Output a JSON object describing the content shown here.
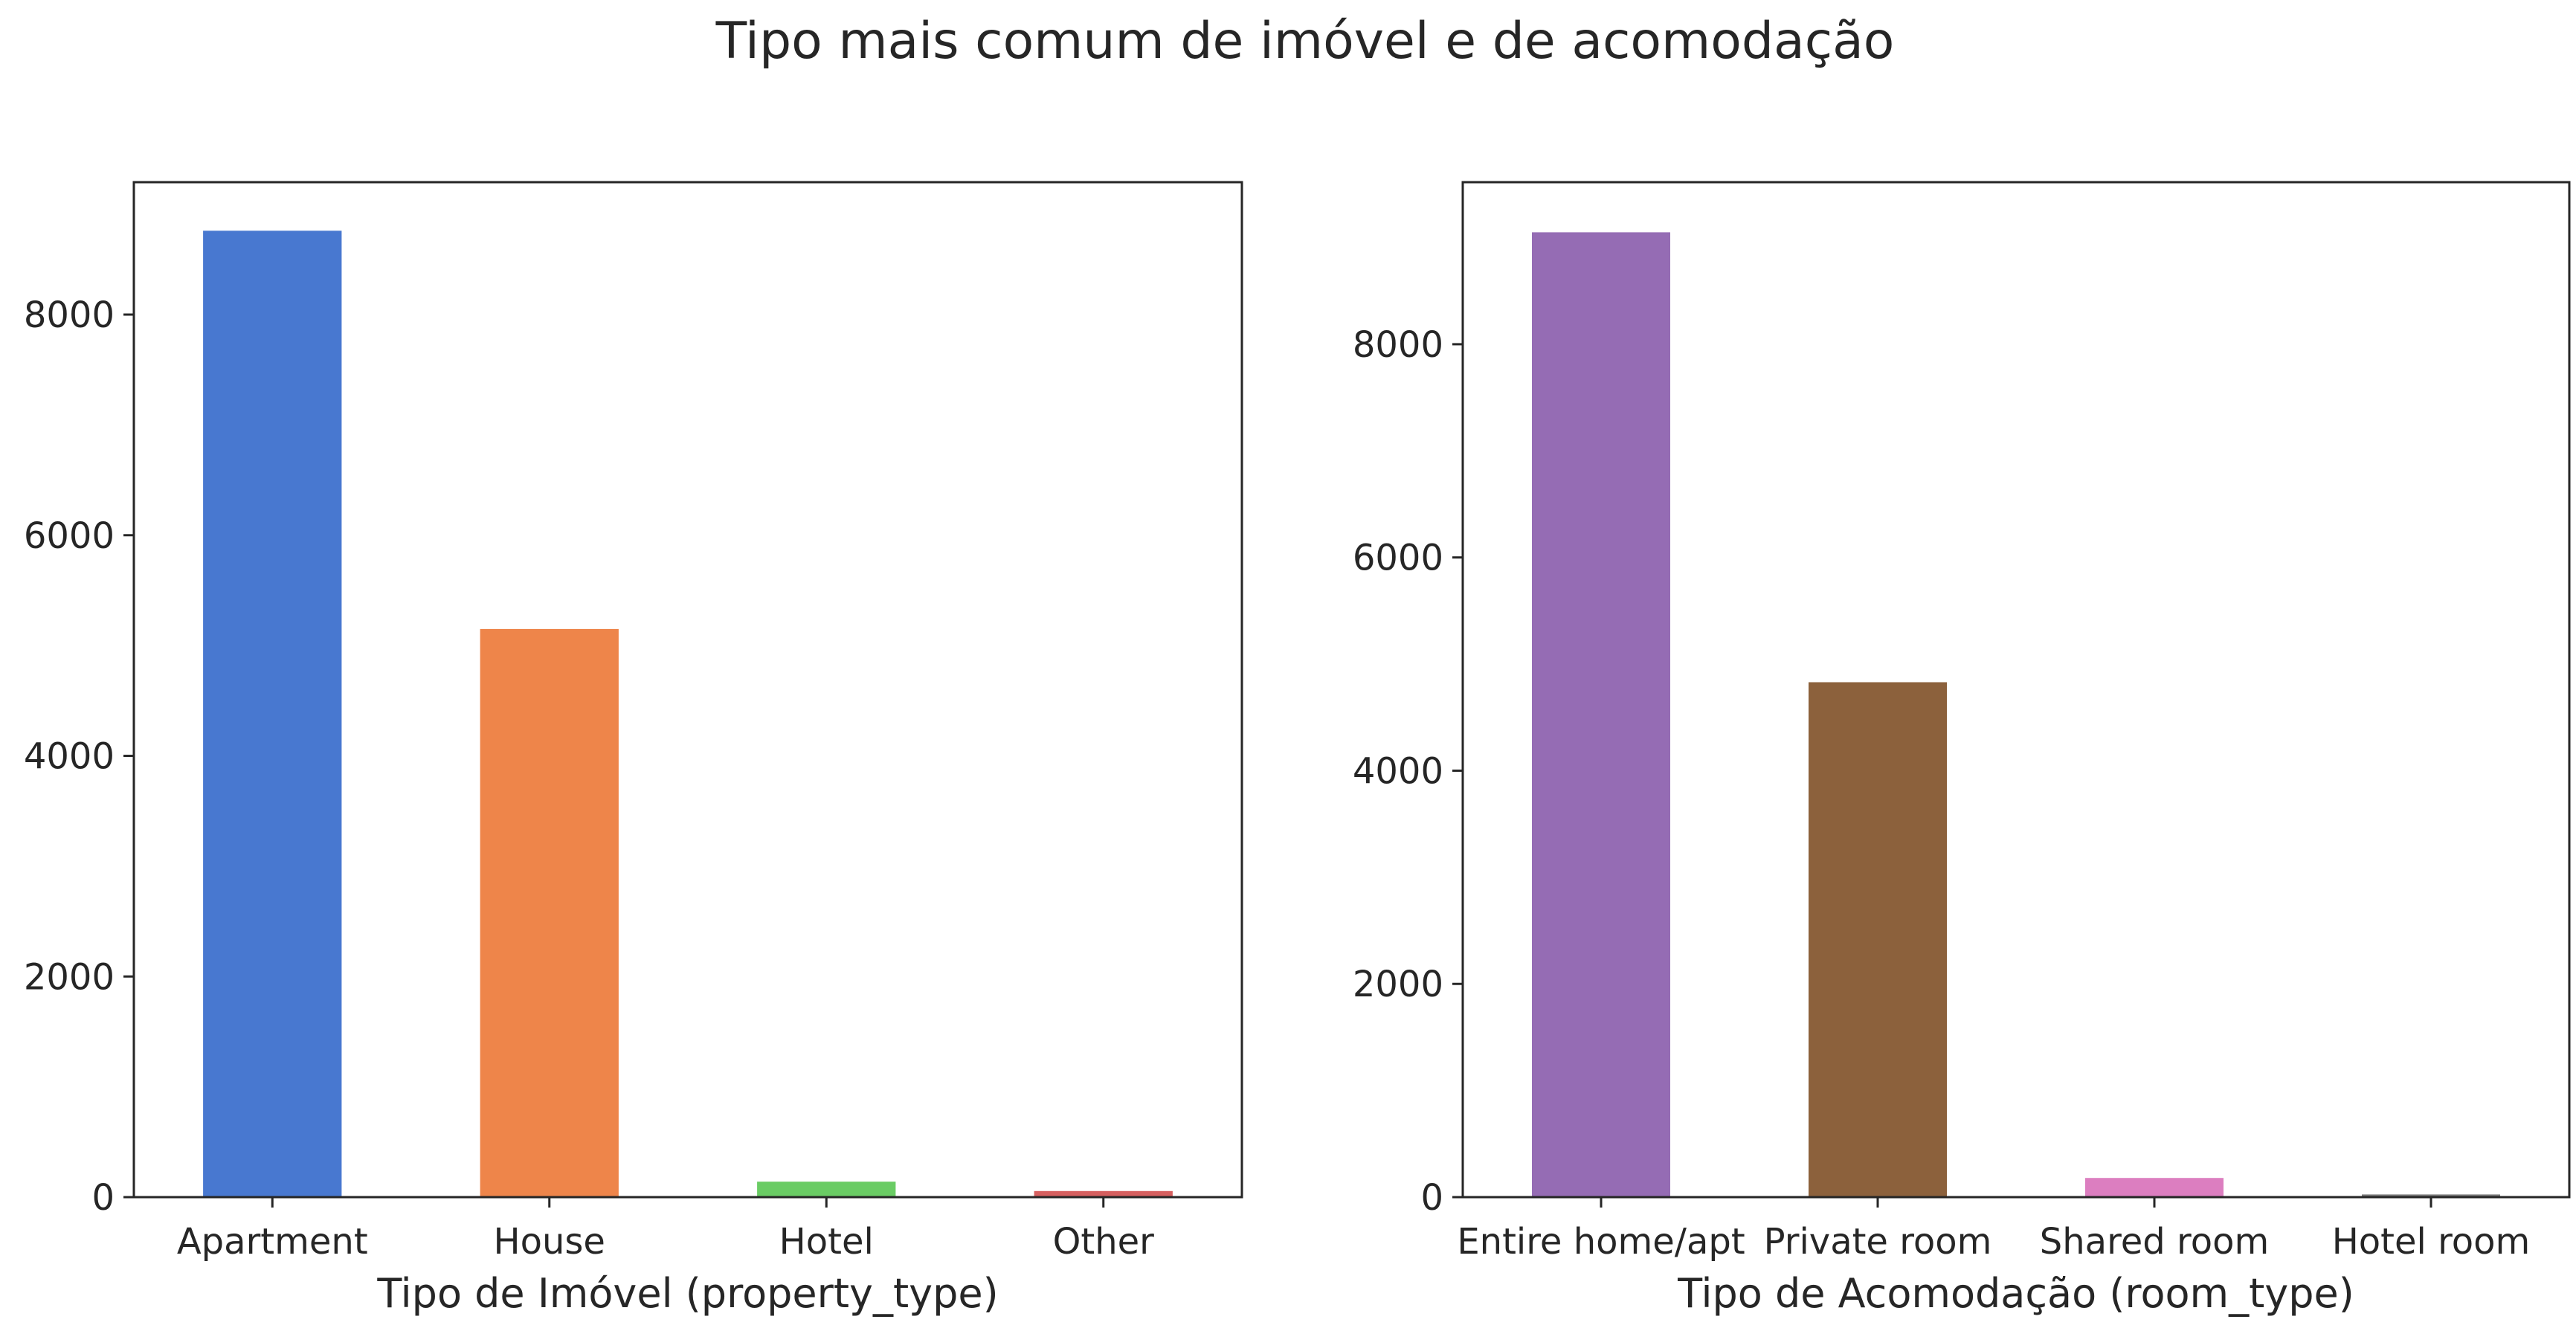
{
  "figure": {
    "title": "Tipo mais comum de imóvel e de acomodação"
  },
  "chart_data": [
    {
      "type": "bar",
      "xlabel": "Tipo de Imóvel (property_type)",
      "ylabel": "",
      "categories": [
        "Apartment",
        "House",
        "Hotel",
        "Other"
      ],
      "values": [
        8760,
        5150,
        140,
        55
      ],
      "colors": [
        "#4878d0",
        "#ee854a",
        "#6acc64",
        "#d65f5f"
      ],
      "ylim": [
        0,
        9200
      ],
      "yticks": [
        0,
        2000,
        4000,
        6000,
        8000
      ],
      "grid": false
    },
    {
      "type": "bar",
      "xlabel": "Tipo de Acomodação (room_type)",
      "ylabel": "",
      "categories": [
        "Entire home/apt",
        "Private room",
        "Shared room",
        "Hotel room"
      ],
      "values": [
        9050,
        4830,
        180,
        25
      ],
      "colors": [
        "#956cb4",
        "#8c613c",
        "#dc7ec0",
        "#797979"
      ],
      "ylim": [
        0,
        9520
      ],
      "yticks": [
        0,
        2000,
        4000,
        6000,
        8000
      ],
      "grid": false
    }
  ]
}
